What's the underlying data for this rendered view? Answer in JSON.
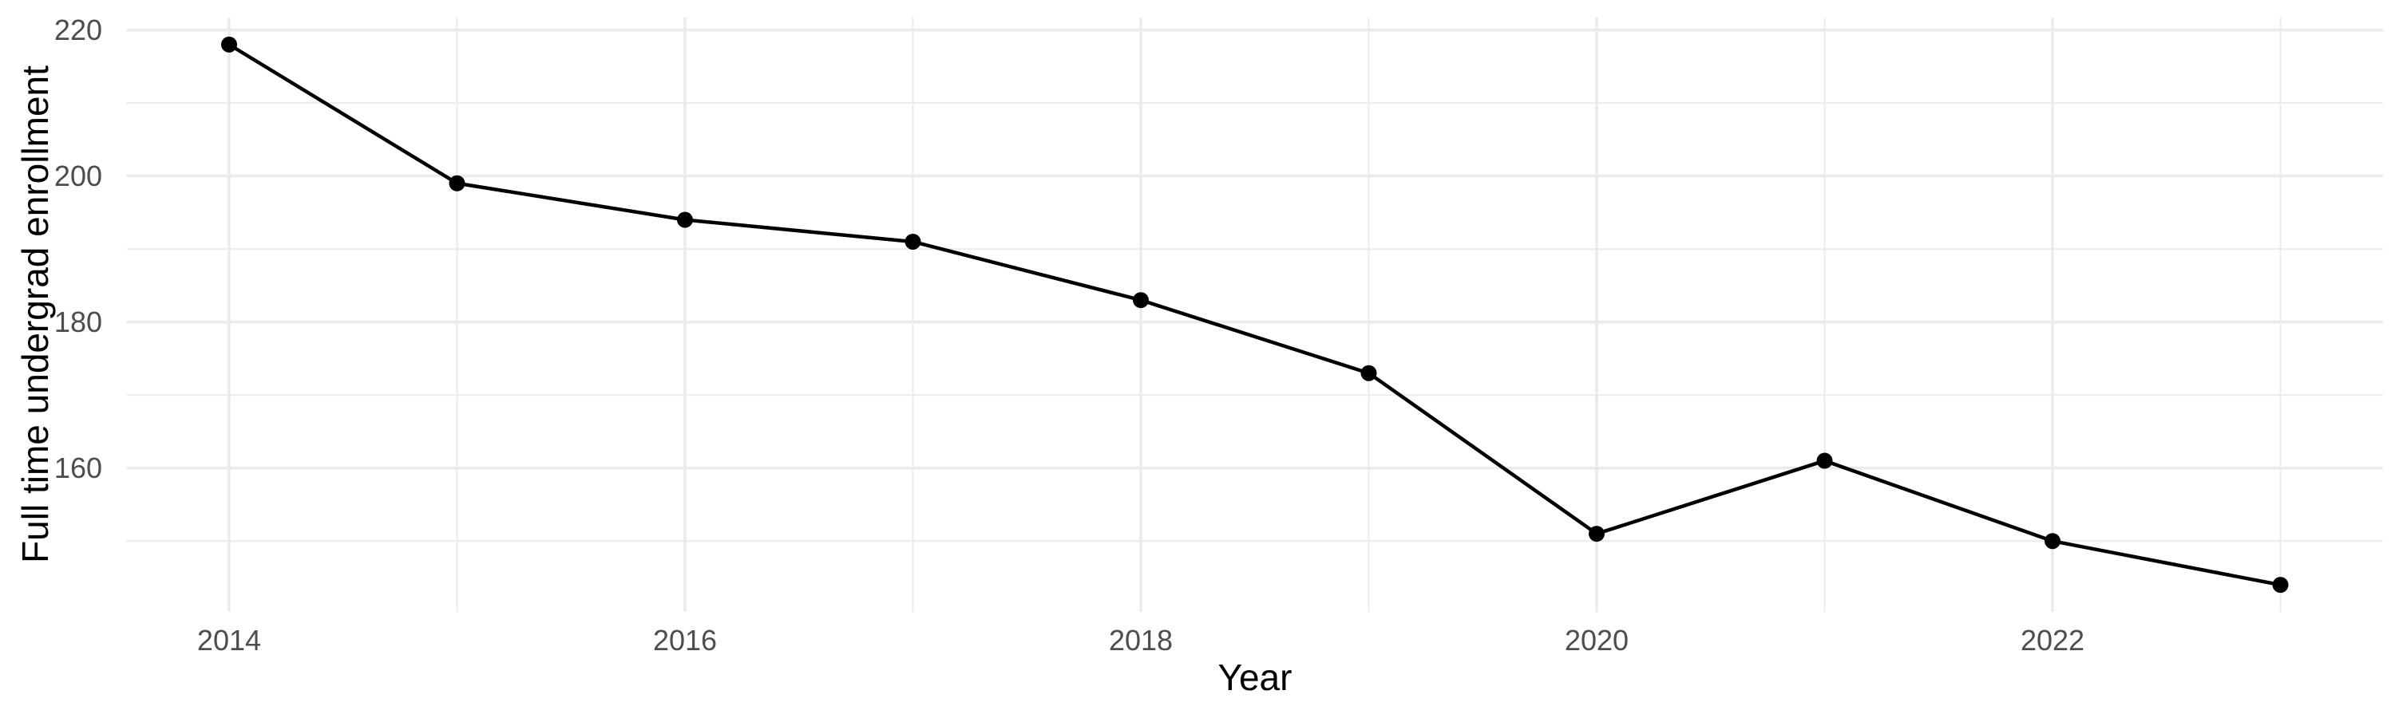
{
  "chart_data": {
    "type": "line",
    "title": "",
    "xlabel": "Year",
    "ylabel": "Full time undergrad enrollment",
    "series": [
      {
        "name": "Full time undergrad enrollment",
        "x": [
          2014,
          2015,
          2016,
          2017,
          2018,
          2019,
          2020,
          2021,
          2022,
          2023
        ],
        "values": [
          218,
          199,
          194,
          191,
          183,
          173,
          151,
          161,
          150,
          144
        ]
      }
    ],
    "xlim": [
      2013.55,
      2023.45
    ],
    "ylim": [
      140.3,
      221.7
    ],
    "x_major_ticks": [
      2014,
      2016,
      2018,
      2020,
      2022
    ],
    "x_minor_gridlines": [
      2015,
      2017,
      2019,
      2021,
      2023
    ],
    "y_major_ticks": [
      160,
      180,
      200,
      220
    ],
    "y_minor_gridlines": [
      150,
      170,
      190,
      210
    ],
    "grid": "major-and-minor",
    "legend_position": "none",
    "marker": "filled-circle"
  },
  "colors": {
    "background": "#ffffff",
    "line": "#000000",
    "point": "#000000",
    "grid_major": "#EBEBEB",
    "grid_minor": "#EDEDED",
    "tick_text": "#4D4D4D",
    "axis_title_text": "#000000"
  }
}
